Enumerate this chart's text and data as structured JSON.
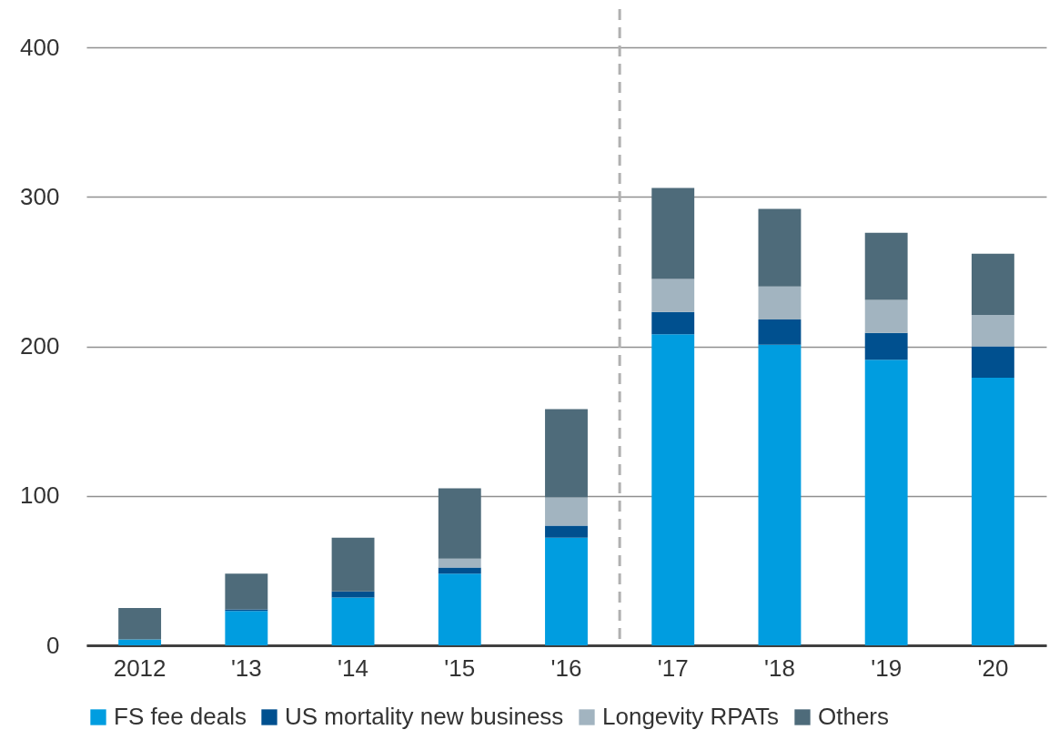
{
  "chart_data": {
    "type": "bar",
    "stacked": true,
    "categories": [
      "2012",
      "'13",
      "'14",
      "'15",
      "'16",
      "'17",
      "'18",
      "'19",
      "'20"
    ],
    "series": [
      {
        "name": "FS fee deals",
        "color": "#009de0",
        "values": [
          4,
          23,
          32,
          48,
          72,
          208,
          201,
          191,
          179
        ]
      },
      {
        "name": "US mortality new business",
        "color": "#00508f",
        "values": [
          0,
          1,
          4,
          4,
          8,
          15,
          17,
          18,
          21
        ]
      },
      {
        "name": "Longevity RPATs",
        "color": "#a2b4c0",
        "values": [
          0,
          0,
          0,
          6,
          19,
          22,
          22,
          22,
          21
        ]
      },
      {
        "name": "Others",
        "color": "#4e6b7a",
        "values": [
          21,
          24,
          36,
          47,
          59,
          61,
          52,
          45,
          41
        ]
      }
    ],
    "ylim": [
      0,
      400
    ],
    "yticks": [
      0,
      100,
      200,
      300,
      400
    ],
    "grid": "y",
    "legend": "bottom",
    "ref_lines": [
      {
        "axis": "x",
        "value": "'17",
        "color": "#b0b0b0",
        "line_style": "dashed"
      }
    ]
  }
}
